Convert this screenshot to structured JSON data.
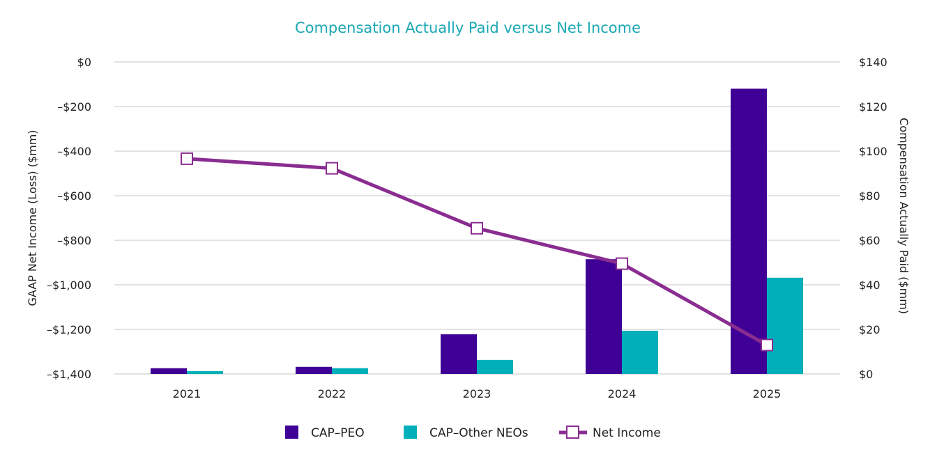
{
  "chart_data": {
    "type": "bar+line",
    "title": "Compensation Actually Paid versus Net Income",
    "categories": [
      "2021",
      "2022",
      "2023",
      "2024",
      "2025"
    ],
    "left_axis": {
      "label": "GAAP Net Income (Loss) ($mm)",
      "range": [
        -1400,
        0
      ],
      "ticks": [
        0,
        -200,
        -400,
        -600,
        -800,
        -1000,
        -1200,
        -1400
      ],
      "tick_labels": [
        "$0",
        "–$200",
        "–$400",
        "–$600",
        "–$800",
        "–$1,000",
        "–$1,200",
        "–$1,400"
      ]
    },
    "right_axis": {
      "label": "Compensation Actually Paid ($mm)",
      "range": [
        0,
        140
      ],
      "ticks": [
        140,
        120,
        100,
        80,
        60,
        40,
        20,
        0
      ],
      "tick_labels": [
        "$140",
        "$120",
        "$100",
        "$80",
        "$60",
        "$40",
        "$20",
        "$0"
      ]
    },
    "series": [
      {
        "name": "CAP–PEO",
        "kind": "bar",
        "axis": "right",
        "color": "#3f0096",
        "values": [
          2.6,
          3.2,
          17.8,
          51.5,
          128
        ]
      },
      {
        "name": "CAP–Other NEOs",
        "kind": "bar",
        "axis": "right",
        "color": "#00afb9",
        "values": [
          1.3,
          2.6,
          6.3,
          19.4,
          43.2
        ]
      },
      {
        "name": "Net Income",
        "kind": "line",
        "axis": "left",
        "color": "#8a2d91",
        "values": [
          -434,
          -477,
          -746,
          -905,
          -1270
        ]
      }
    ],
    "legend_position": "bottom-center",
    "grid": true
  }
}
